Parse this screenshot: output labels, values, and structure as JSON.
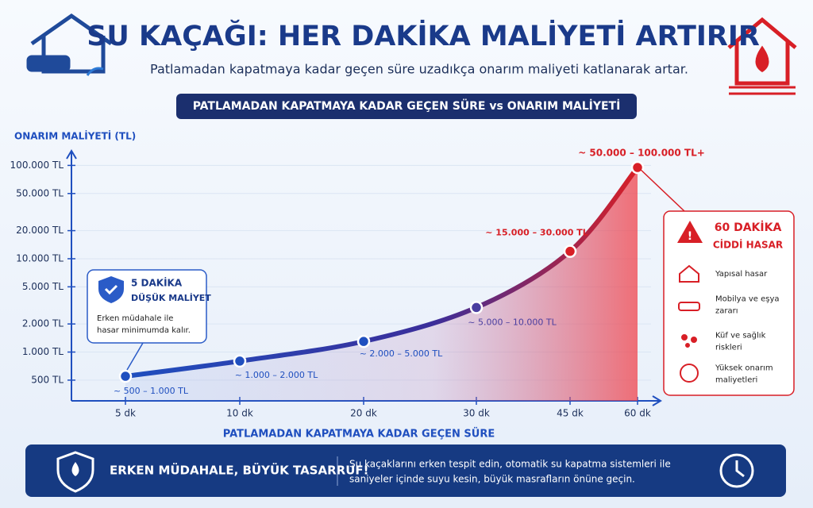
{
  "header": {
    "title": "SU KAÇAĞI: HER DAKİKA MALİYETİ ARTIRIR",
    "subtitle": "Patlamadan kapatmaya kadar geçen süre uzadıkça onarım maliyeti katlanarak artar."
  },
  "chart_data": {
    "type": "line",
    "title": "PATLAMADAN KAPATMAYA KADAR GEÇEN SÜRE vs ONARIM MALİYETİ",
    "y_label": "ONARIM MALİYETİ (TL)",
    "x_label": "PATLAMADAN KAPATMAYA KADAR GEÇEN SÜRE",
    "categories": [
      "5 dk",
      "10 dk",
      "20 dk",
      "30 dk",
      "45 dk",
      "60 dk"
    ],
    "values": [
      550,
      800,
      1300,
      3000,
      12000,
      95000
    ],
    "annotations": [
      "~ 500 – 1.000 TL",
      "~ 1.000 – 2.000 TL",
      "~ 2.000 – 5.000 TL",
      "~ 5.000 – 10.000 TL",
      "~ 15.000 – 30.000 TL",
      "~ 50.000 – 100.000 TL+"
    ],
    "log_y": true,
    "ylim": [
      300,
      130000
    ],
    "yticks": [
      {
        "value": 500,
        "label": "500 TL"
      },
      {
        "value": 1000,
        "label": "1.000 TL"
      },
      {
        "value": 2000,
        "label": "2.000 TL"
      },
      {
        "value": 5000,
        "label": "5.000 TL"
      },
      {
        "value": 10000,
        "label": "10.000 TL"
      },
      {
        "value": 20000,
        "label": "20.000 TL"
      },
      {
        "value": 50000,
        "label": "50.000 TL"
      },
      {
        "value": 100000,
        "label": "100.000 TL"
      }
    ],
    "colors": [
      "#1f4fbf",
      "#d81f26"
    ]
  },
  "left_callout": {
    "title": [
      "5 DAKİKA",
      "DÜŞÜK MALİYET"
    ],
    "text": [
      "Erken müdahale ile",
      "hasar minimumda kalır."
    ]
  },
  "right_panel": {
    "title": [
      "60 DAKİKA",
      "CİDDİ HASAR"
    ],
    "items": [
      [
        "Yapısal hasar"
      ],
      [
        "Mobilya ve eşya",
        "zararı"
      ],
      [
        "Küf ve sağlık",
        "riskleri"
      ],
      [
        "Yüksek onarım",
        "maliyetleri"
      ]
    ]
  },
  "footer": {
    "headline": "ERKEN MÜDAHALE, BÜYÜK TASARRUF!",
    "text": [
      "Su kaçaklarını erken tespit edin, otomatik su kapatma sistemleri ile",
      "saniyeler içinde suyu kesin, büyük masrafların önüne geçin."
    ]
  }
}
